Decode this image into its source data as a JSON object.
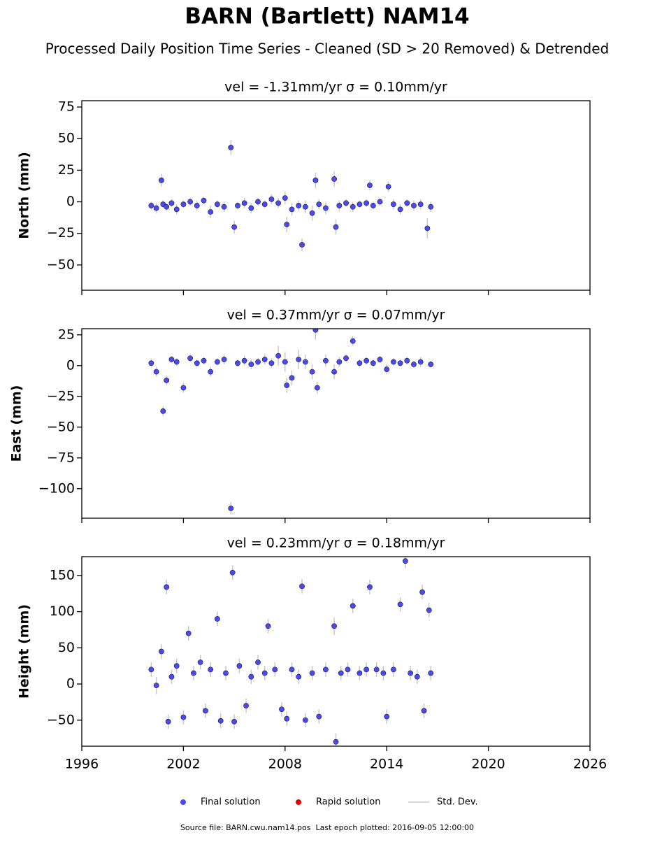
{
  "title": "BARN (Bartlett) NAM14",
  "subtitle": "Processed Daily Position Time Series - Cleaned (SD > 20 Removed) & Detrended",
  "source": "Source file: BARN.cwu.nam14.pos  Last epoch plotted: 2016-09-05 12:00:00",
  "chart_data": [
    {
      "type": "scatter",
      "title": "vel = -1.31mm/yr   σ = 0.10mm/yr",
      "y_label": "North (mm)",
      "xlim": [
        1996,
        2026
      ],
      "xticks": [
        1996,
        2002,
        2008,
        2014,
        2020,
        2026
      ],
      "xticklabels": false,
      "ylim": [
        -70,
        80
      ],
      "yticks": [
        {
          "value": -50,
          "label": "−50"
        },
        {
          "value": -25,
          "label": "−25"
        },
        0,
        25,
        50,
        75
      ],
      "error_label": "Std. Dev.",
      "error_color": "#c8c8c8",
      "series": [
        {
          "name": "Final solution",
          "color": "#4a4af0",
          "x": [
            2000.1,
            2000.4,
            2000.7,
            2000.8,
            2001.0,
            2001.3,
            2001.6,
            2002.0,
            2002.4,
            2002.8,
            2003.2,
            2003.6,
            2004.0,
            2004.4,
            2004.8,
            2005.0,
            2005.2,
            2005.6,
            2006.0,
            2006.4,
            2006.8,
            2007.2,
            2007.6,
            2008.0,
            2008.1,
            2008.4,
            2008.8,
            2009.0,
            2009.2,
            2009.6,
            2009.8,
            2010.0,
            2010.4,
            2010.9,
            2011.0,
            2011.2,
            2011.6,
            2012.0,
            2012.4,
            2012.8,
            2013.0,
            2013.2,
            2013.6,
            2014.1,
            2014.4,
            2014.8,
            2015.2,
            2015.6,
            2016.0,
            2016.4,
            2016.6
          ],
          "values": [
            -3,
            -5,
            17,
            -2,
            -4,
            -1,
            -6,
            -2,
            0,
            -3,
            1,
            -8,
            -2,
            -4,
            43,
            -20,
            -3,
            -1,
            -5,
            0,
            -2,
            2,
            -1,
            3,
            -18,
            -6,
            -3,
            -34,
            -4,
            -9,
            17,
            -2,
            -5,
            18,
            -20,
            -3,
            -1,
            -4,
            -2,
            -1,
            13,
            -3,
            0,
            12,
            -2,
            -6,
            -1,
            -3,
            -2,
            -21,
            -4
          ],
          "errors": [
            3,
            4,
            5,
            3,
            3,
            3,
            4,
            3,
            3,
            4,
            3,
            5,
            3,
            4,
            6,
            5,
            3,
            4,
            4,
            3,
            3,
            4,
            4,
            5,
            6,
            5,
            4,
            5,
            5,
            6,
            6,
            4,
            5,
            6,
            6,
            4,
            3,
            4,
            3,
            3,
            4,
            3,
            3,
            4,
            4,
            4,
            3,
            4,
            4,
            8,
            4
          ]
        },
        {
          "name": "Rapid solution",
          "color": "#e00000",
          "x": [],
          "values": []
        }
      ]
    },
    {
      "type": "scatter",
      "title": "vel = 0.37mm/yr   σ = 0.07mm/yr",
      "y_label": "East (mm)",
      "xlim": [
        1996,
        2026
      ],
      "xticks": [
        1996,
        2002,
        2008,
        2014,
        2020,
        2026
      ],
      "xticklabels": false,
      "ylim": [
        -124,
        30
      ],
      "yticks": [
        {
          "value": -100,
          "label": "−100"
        },
        {
          "value": -75,
          "label": "−75"
        },
        {
          "value": -50,
          "label": "−50"
        },
        {
          "value": -25,
          "label": "−25"
        },
        0,
        25
      ],
      "error_label": "Std. Dev.",
      "error_color": "#c8c8c8",
      "series": [
        {
          "name": "Final solution",
          "color": "#4a4af0",
          "x": [
            2000.1,
            2000.4,
            2000.8,
            2001.0,
            2001.3,
            2001.6,
            2002.0,
            2002.4,
            2002.8,
            2003.2,
            2003.6,
            2004.0,
            2004.4,
            2004.8,
            2005.2,
            2005.6,
            2006.0,
            2006.4,
            2006.8,
            2007.2,
            2007.6,
            2008.0,
            2008.1,
            2008.4,
            2008.8,
            2009.2,
            2009.6,
            2009.8,
            2009.9,
            2010.4,
            2010.9,
            2011.2,
            2011.6,
            2012.0,
            2012.4,
            2012.8,
            2013.2,
            2013.6,
            2014.0,
            2014.4,
            2014.8,
            2015.2,
            2015.6,
            2016.0,
            2016.6
          ],
          "values": [
            2,
            -5,
            -37,
            -12,
            5,
            3,
            -18,
            6,
            2,
            4,
            -5,
            3,
            5,
            -116,
            2,
            4,
            1,
            3,
            5,
            2,
            8,
            3,
            -16,
            -10,
            5,
            3,
            -5,
            29,
            -18,
            4,
            -5,
            3,
            6,
            20,
            2,
            4,
            2,
            5,
            -3,
            3,
            2,
            4,
            1,
            3,
            1
          ],
          "errors": [
            3,
            4,
            4,
            4,
            3,
            3,
            4,
            3,
            3,
            3,
            4,
            3,
            4,
            5,
            3,
            4,
            4,
            3,
            4,
            4,
            8,
            8,
            6,
            6,
            8,
            6,
            6,
            8,
            5,
            5,
            6,
            4,
            3,
            4,
            3,
            3,
            3,
            3,
            4,
            3,
            3,
            3,
            3,
            4,
            3
          ]
        },
        {
          "name": "Rapid solution",
          "color": "#e00000",
          "x": [],
          "values": []
        }
      ]
    },
    {
      "type": "scatter",
      "title": "vel = 0.23mm/yr   σ = 0.18mm/yr",
      "y_label": "Height (mm)",
      "xlim": [
        1996,
        2026
      ],
      "xticks": [
        1996,
        2002,
        2008,
        2014,
        2020,
        2026
      ],
      "xticklabels": true,
      "ylim": [
        -86,
        176
      ],
      "yticks": [
        {
          "value": -50,
          "label": "−50"
        },
        0,
        50,
        100,
        150
      ],
      "error_label": "Std. Dev.",
      "error_color": "#c8c8c8",
      "series": [
        {
          "name": "Final solution",
          "color": "#4a4af0",
          "x": [
            2000.1,
            2000.4,
            2000.7,
            2001.0,
            2001.1,
            2001.3,
            2001.6,
            2002.0,
            2002.3,
            2002.6,
            2003.0,
            2003.3,
            2003.6,
            2004.0,
            2004.2,
            2004.5,
            2004.9,
            2005.0,
            2005.3,
            2005.7,
            2006.0,
            2006.4,
            2006.8,
            2007.0,
            2007.4,
            2007.8,
            2008.1,
            2008.4,
            2008.8,
            2009.0,
            2009.2,
            2009.6,
            2010.0,
            2010.4,
            2010.9,
            2011.0,
            2011.3,
            2011.7,
            2012.0,
            2012.4,
            2012.8,
            2013.0,
            2013.4,
            2013.8,
            2014.0,
            2014.4,
            2014.8,
            2015.1,
            2015.4,
            2015.8,
            2016.1,
            2016.2,
            2016.5,
            2016.6
          ],
          "values": [
            20,
            -2,
            45,
            134,
            -52,
            10,
            25,
            -46,
            70,
            15,
            30,
            -37,
            20,
            90,
            -51,
            15,
            154,
            -52,
            25,
            -30,
            10,
            30,
            15,
            80,
            20,
            -35,
            -48,
            20,
            10,
            135,
            -50,
            15,
            -45,
            20,
            80,
            -80,
            15,
            20,
            108,
            15,
            20,
            134,
            20,
            15,
            -45,
            20,
            110,
            170,
            15,
            10,
            127,
            -37,
            102,
            15
          ],
          "errors": [
            10,
            12,
            10,
            10,
            10,
            10,
            10,
            10,
            10,
            10,
            10,
            10,
            10,
            10,
            10,
            10,
            10,
            10,
            10,
            10,
            10,
            10,
            10,
            10,
            10,
            10,
            10,
            10,
            10,
            10,
            10,
            10,
            10,
            10,
            12,
            12,
            10,
            10,
            10,
            10,
            10,
            10,
            10,
            10,
            10,
            10,
            10,
            10,
            10,
            10,
            10,
            10,
            10,
            10
          ]
        },
        {
          "name": "Rapid solution",
          "color": "#e00000",
          "x": [],
          "values": []
        }
      ]
    }
  ]
}
